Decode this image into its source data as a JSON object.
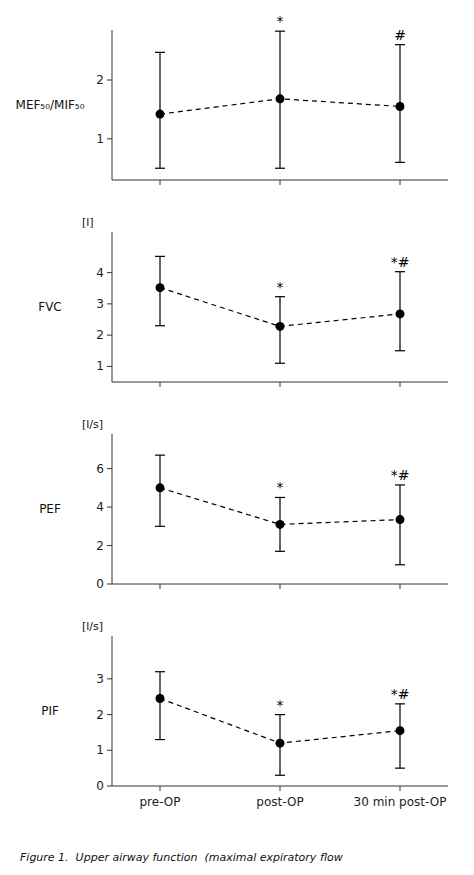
{
  "chart_data": [
    {
      "type": "line",
      "ylabel": "MEF₅₀/MIF₅₀",
      "categories": [
        null,
        null,
        null
      ],
      "values": [
        1.42,
        1.68,
        1.55
      ],
      "error_upper": [
        1.05,
        1.15,
        1.05
      ],
      "error_lower": [
        0.92,
        1.18,
        0.95
      ],
      "annotations": [
        null,
        "*",
        "#"
      ],
      "ylim": [
        0.3,
        2.85
      ],
      "yticks": [
        1,
        2
      ],
      "color": "black",
      "marker": "circle",
      "line_style": "dashed",
      "grid": false,
      "tick_labels": "y"
    },
    {
      "type": "line",
      "ylabel": "FVC",
      "yunit": "[l]",
      "categories": [
        null,
        null,
        null
      ],
      "values": [
        3.52,
        2.28,
        2.68
      ],
      "error_upper": [
        1.0,
        0.95,
        1.35
      ],
      "error_lower": [
        1.22,
        1.18,
        1.18
      ],
      "annotations": [
        null,
        "*",
        "*#"
      ],
      "ylim": [
        0.5,
        5.3
      ],
      "yticks": [
        1,
        2,
        3,
        4
      ],
      "color": "black",
      "marker": "circle",
      "line_style": "dashed",
      "grid": false,
      "tick_labels": "y"
    },
    {
      "type": "line",
      "ylabel": "PEF",
      "yunit": "[l/s]",
      "categories": [
        null,
        null,
        null
      ],
      "values": [
        5.0,
        3.1,
        3.35
      ],
      "error_upper": [
        1.7,
        1.4,
        1.8
      ],
      "error_lower": [
        2.0,
        1.4,
        2.35
      ],
      "annotations": [
        null,
        "*",
        "*#"
      ],
      "ylim": [
        0,
        7.8
      ],
      "yticks": [
        0,
        2,
        4,
        6
      ],
      "color": "black",
      "marker": "circle",
      "line_style": "dashed",
      "grid": false,
      "tick_labels": "y"
    },
    {
      "type": "line",
      "ylabel": "PIF",
      "yunit": "[l/s]",
      "categories": [
        "pre-OP",
        "post-OP",
        "30 min post-OP"
      ],
      "values": [
        2.45,
        1.2,
        1.55
      ],
      "error_upper": [
        0.75,
        0.8,
        0.75
      ],
      "error_lower": [
        1.15,
        0.9,
        1.05
      ],
      "annotations": [
        null,
        "*",
        "*#"
      ],
      "ylim": [
        0,
        4.2
      ],
      "yticks": [
        0,
        1,
        2,
        3
      ],
      "color": "black",
      "marker": "circle",
      "line_style": "dashed",
      "grid": false
    }
  ],
  "caption": "Figure 1.  Upper airway function  (maximal expiratory flow"
}
